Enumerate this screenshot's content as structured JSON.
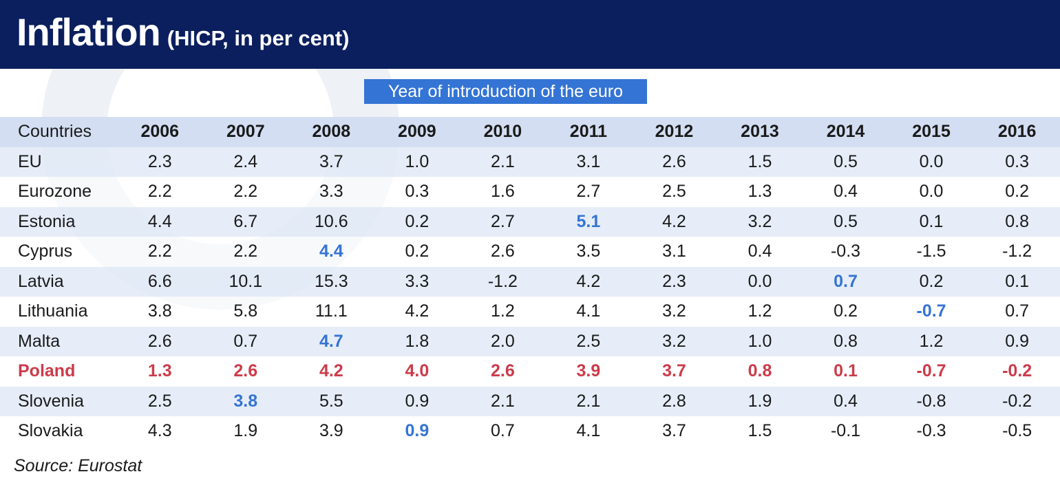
{
  "header": {
    "title": "Inflation",
    "subtitle": "(HICP, in per cent)"
  },
  "legend": {
    "label": "Year of introduction of the euro",
    "color": "#3474d4"
  },
  "colors": {
    "header_bg": "#0b1f5e",
    "highlight_row": "#cc3b4a",
    "euro_year": "#3474d4"
  },
  "source": "Source: Eurostat",
  "chart_data": {
    "type": "table",
    "header_label": "Countries",
    "columns": [
      "2006",
      "2007",
      "2008",
      "2009",
      "2010",
      "2011",
      "2012",
      "2013",
      "2014",
      "2015",
      "2016"
    ],
    "rows": [
      {
        "country": "EU",
        "values": [
          "2.3",
          "2.4",
          "3.7",
          "1.0",
          "2.1",
          "3.1",
          "2.6",
          "1.5",
          "0.5",
          "0.0",
          "0.3"
        ],
        "euro_year": null,
        "highlight": false
      },
      {
        "country": "Eurozone",
        "values": [
          "2.2",
          "2.2",
          "3.3",
          "0.3",
          "1.6",
          "2.7",
          "2.5",
          "1.3",
          "0.4",
          "0.0",
          "0.2"
        ],
        "euro_year": null,
        "highlight": false
      },
      {
        "country": "Estonia",
        "values": [
          "4.4",
          "6.7",
          "10.6",
          "0.2",
          "2.7",
          "5.1",
          "4.2",
          "3.2",
          "0.5",
          "0.1",
          "0.8"
        ],
        "euro_year": "2011",
        "highlight": false
      },
      {
        "country": "Cyprus",
        "values": [
          "2.2",
          "2.2",
          "4.4",
          "0.2",
          "2.6",
          "3.5",
          "3.1",
          "0.4",
          "-0.3",
          "-1.5",
          "-1.2"
        ],
        "euro_year": "2008",
        "highlight": false
      },
      {
        "country": "Latvia",
        "values": [
          "6.6",
          "10.1",
          "15.3",
          "3.3",
          "-1.2",
          "4.2",
          "2.3",
          "0.0",
          "0.7",
          "0.2",
          "0.1"
        ],
        "euro_year": "2014",
        "highlight": false
      },
      {
        "country": "Lithuania",
        "values": [
          "3.8",
          "5.8",
          "11.1",
          "4.2",
          "1.2",
          "4.1",
          "3.2",
          "1.2",
          "0.2",
          "-0.7",
          "0.7"
        ],
        "euro_year": "2015",
        "highlight": false
      },
      {
        "country": "Malta",
        "values": [
          "2.6",
          "0.7",
          "4.7",
          "1.8",
          "2.0",
          "2.5",
          "3.2",
          "1.0",
          "0.8",
          "1.2",
          "0.9"
        ],
        "euro_year": "2008",
        "highlight": false
      },
      {
        "country": "Poland",
        "values": [
          "1.3",
          "2.6",
          "4.2",
          "4.0",
          "2.6",
          "3.9",
          "3.7",
          "0.8",
          "0.1",
          "-0.7",
          "-0.2"
        ],
        "euro_year": null,
        "highlight": true
      },
      {
        "country": "Slovenia",
        "values": [
          "2.5",
          "3.8",
          "5.5",
          "0.9",
          "2.1",
          "2.1",
          "2.8",
          "1.9",
          "0.4",
          "-0.8",
          "-0.2"
        ],
        "euro_year": "2007",
        "highlight": false
      },
      {
        "country": "Slovakia",
        "values": [
          "4.3",
          "1.9",
          "3.9",
          "0.9",
          "0.7",
          "4.1",
          "3.7",
          "1.5",
          "-0.1",
          "-0.3",
          "-0.5"
        ],
        "euro_year": "2009",
        "highlight": false
      }
    ]
  }
}
